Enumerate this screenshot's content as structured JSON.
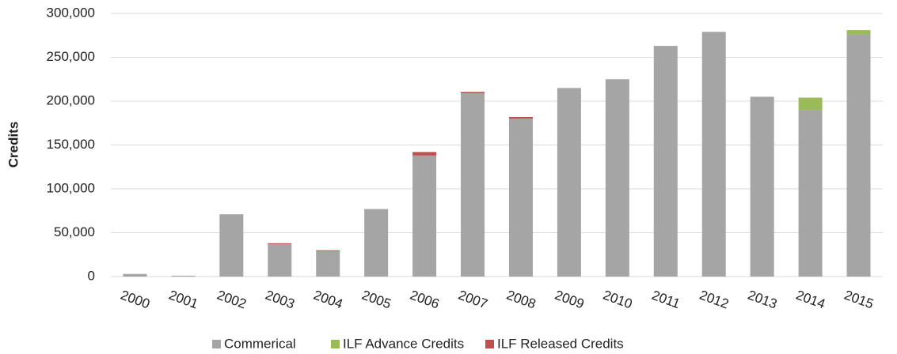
{
  "chart_data": {
    "type": "stacked_bar",
    "y_label": "Credits",
    "categories": [
      "2000",
      "2001",
      "2002",
      "2003",
      "2004",
      "2005",
      "2006",
      "2007",
      "2008",
      "2009",
      "2010",
      "2011",
      "2012",
      "2013",
      "2014",
      "2015"
    ],
    "series": [
      {
        "name": "Commerical",
        "color": "#a5a5a5",
        "values": [
          3000,
          1000,
          71000,
          37000,
          29000,
          77000,
          138000,
          209000,
          180000,
          215000,
          225000,
          263000,
          279000,
          205000,
          190000,
          276000
        ]
      },
      {
        "name": "ILF Advance Credits",
        "color": "#9bbb59",
        "values": [
          0,
          0,
          0,
          0,
          0,
          0,
          0,
          0,
          0,
          0,
          0,
          0,
          0,
          0,
          14000,
          5000
        ]
      },
      {
        "name": "ILF Released Credits",
        "color": "#c0504d",
        "values": [
          0,
          0,
          0,
          1000,
          1000,
          0,
          4000,
          1500,
          2000,
          0,
          0,
          0,
          0,
          0,
          0,
          0
        ]
      }
    ],
    "ylim": [
      0,
      300000
    ],
    "yticks": [
      0,
      {
        "value": 50000,
        "label": "50,000"
      },
      {
        "value": 100000,
        "label": "100,000"
      },
      {
        "value": 150000,
        "label": "150,000"
      },
      {
        "value": 200000,
        "label": "200,000"
      },
      {
        "value": 250000,
        "label": "250,000"
      },
      {
        "value": 300000,
        "label": "300,000"
      }
    ],
    "grid": true,
    "legend": "bottom"
  }
}
